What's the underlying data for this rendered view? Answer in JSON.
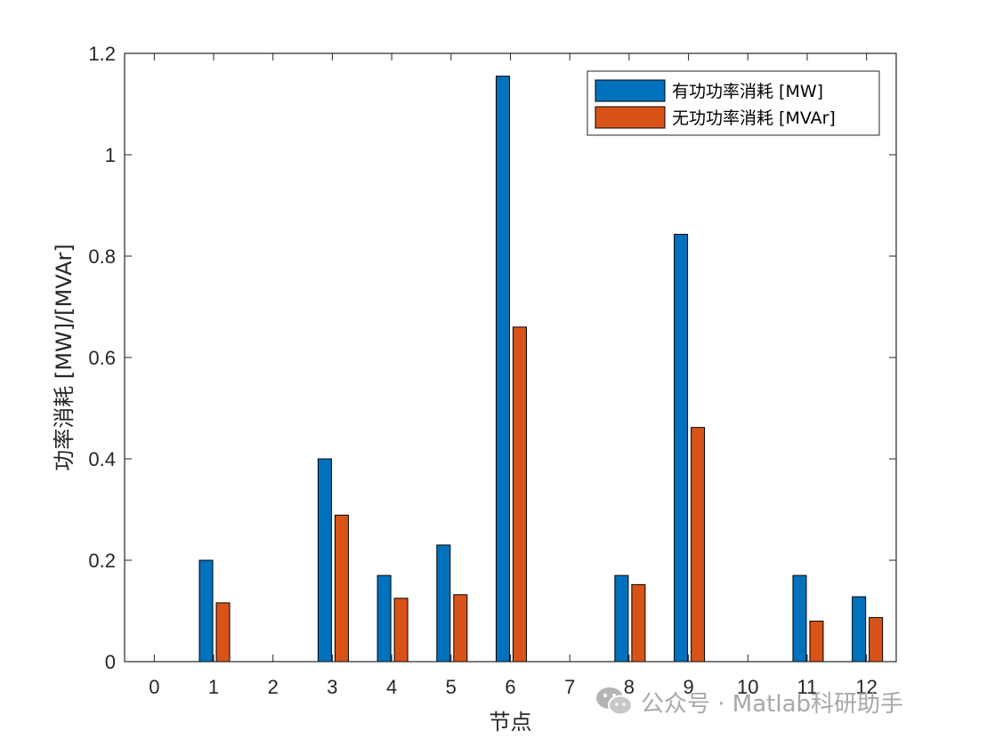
{
  "chart_data": {
    "type": "bar",
    "categories": [
      "0",
      "1",
      "2",
      "3",
      "4",
      "5",
      "6",
      "7",
      "8",
      "9",
      "10",
      "11",
      "12"
    ],
    "series": [
      {
        "name": "有功功率消耗 [MW]",
        "color": "#0072BD",
        "values": [
          0,
          0.2,
          0,
          0.4,
          0.17,
          0.23,
          1.155,
          0,
          0.17,
          0.843,
          0,
          0.17,
          0.128
        ]
      },
      {
        "name": "无功功率消耗 [MVAr]",
        "color": "#D95319",
        "values": [
          0,
          0.116,
          0,
          0.289,
          0.125,
          0.132,
          0.66,
          0,
          0.152,
          0.462,
          0,
          0.08,
          0.087
        ]
      }
    ],
    "title": "",
    "xlabel": "节点",
    "ylabel": "功率消耗 [MW]/[MVAr]",
    "ylim": [
      0,
      1.2
    ],
    "yticks": [
      "0",
      "0.2",
      "0.4",
      "0.6",
      "0.8",
      "1",
      "1.2"
    ],
    "grid": false,
    "legend_position": "top-right"
  },
  "watermark": {
    "icon": "wechat-icon",
    "text": "公众号 · Matlab科研助手"
  }
}
